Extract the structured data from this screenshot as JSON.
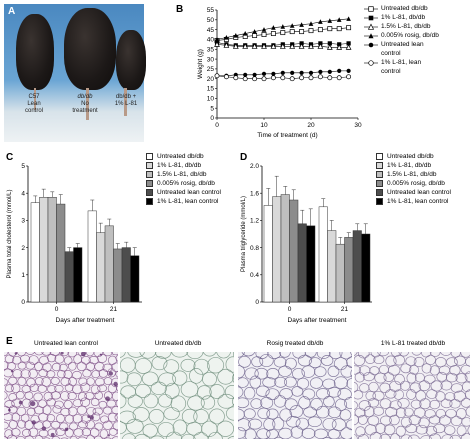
{
  "panels": {
    "A": {
      "letter": "A",
      "mouse_labels": [
        {
          "line1": "C57",
          "line2": "Lean",
          "line3": "control"
        },
        {
          "line1": "db/db",
          "line2": "No",
          "line3": "treatment"
        },
        {
          "line1": "db/db +",
          "line2": "1% L-81",
          "line3": ""
        }
      ]
    },
    "B": {
      "letter": "B"
    },
    "C": {
      "letter": "C"
    },
    "D": {
      "letter": "D"
    },
    "E": {
      "letter": "E",
      "labels": [
        "Untreated lean control",
        "Untreated db/db",
        "Rosig treated db/db",
        "1% L-81 treated db/db"
      ]
    }
  },
  "legend_B": [
    {
      "label": "Untreated db/db",
      "marker": "open-square"
    },
    {
      "label": "1% L-81, db/db",
      "marker": "filled-square"
    },
    {
      "label": "1.5% L-81, db/db",
      "marker": "open-triangle"
    },
    {
      "label": "0.005% rosig, db/db",
      "marker": "filled-triangle"
    },
    {
      "label": "Untreated lean",
      "marker": "filled-circle"
    },
    {
      "label": "control",
      "marker": "none"
    },
    {
      "label": "1% L-81, lean",
      "marker": "open-circle"
    },
    {
      "label": "control",
      "marker": "none"
    }
  ],
  "legend_bars": [
    {
      "label": "Untreated db/db",
      "color": "#ffffff"
    },
    {
      "label": "1% L-81, db/db",
      "color": "#d9d9d9"
    },
    {
      "label": "1.5% L-81, db/db",
      "color": "#bfbfbf"
    },
    {
      "label": "0.005% rosig, db/db",
      "color": "#8c8c8c"
    },
    {
      "label": "Untreated lean control",
      "color": "#4d4d4d"
    },
    {
      "label": "1% L-81, lean control",
      "color": "#000000"
    }
  ],
  "chart_data": [
    {
      "id": "B",
      "type": "line",
      "xlabel": "Time of treatment (d)",
      "ylabel": "Weight (g)",
      "xlim": [
        0,
        30
      ],
      "ylim": [
        0,
        55
      ],
      "xticks": [
        0,
        10,
        20,
        30
      ],
      "yticks": [
        0,
        5,
        10,
        15,
        20,
        25,
        30,
        35,
        40,
        45,
        50,
        55
      ],
      "x": [
        0,
        2,
        4,
        6,
        8,
        10,
        12,
        14,
        16,
        18,
        20,
        22,
        24,
        26,
        28
      ],
      "series": [
        {
          "name": "Untreated db/db",
          "marker": "open-square",
          "values": [
            39.5,
            40,
            41,
            41.5,
            42,
            42.5,
            43,
            43.5,
            44,
            44,
            44.5,
            45,
            45.5,
            45.5,
            46
          ]
        },
        {
          "name": "1% L-81, db/db",
          "marker": "filled-square",
          "values": [
            38.5,
            37.5,
            37,
            37,
            37,
            37,
            37,
            37.5,
            37.5,
            38,
            37.5,
            38,
            38,
            37.5,
            38
          ]
        },
        {
          "name": "1.5% L-81, db/db",
          "marker": "open-triangle",
          "values": [
            37.5,
            37,
            36.5,
            36.5,
            36.5,
            36.5,
            36.5,
            36.5,
            36.5,
            36.5,
            36.5,
            36.5,
            36,
            36,
            36
          ]
        },
        {
          "name": "0.005% rosig, db/db",
          "marker": "filled-triangle",
          "values": [
            40,
            41,
            42,
            43,
            44,
            45,
            46,
            46.5,
            47,
            47.5,
            48,
            49,
            49.5,
            50,
            50.5
          ]
        },
        {
          "name": "Untreated lean control",
          "marker": "filled-circle",
          "values": [
            21.5,
            21.5,
            22,
            22,
            22,
            22.5,
            22.5,
            23,
            23,
            23,
            23,
            23.5,
            23.5,
            24,
            24
          ]
        },
        {
          "name": "1% L-81, lean control",
          "marker": "open-circle",
          "values": [
            21.5,
            21,
            20.5,
            20,
            20,
            20,
            20.5,
            20.5,
            20,
            20.5,
            20.5,
            21,
            20.5,
            20.5,
            21
          ]
        }
      ]
    },
    {
      "id": "C",
      "type": "bar",
      "xlabel": "Days after treatment",
      "ylabel": "Plasma total cholesterol (mmol/L)",
      "ylim": [
        0,
        5
      ],
      "yticks": [
        "0",
        "1",
        "2",
        "3",
        "4",
        "5"
      ],
      "categories": [
        "0",
        "21"
      ],
      "series": [
        {
          "name": "Untreated db/db",
          "values": [
            3.65,
            3.35
          ],
          "err": [
            0.25,
            0.4
          ]
        },
        {
          "name": "1% L-81, db/db",
          "values": [
            3.85,
            2.55
          ],
          "err": [
            0.3,
            0.35
          ]
        },
        {
          "name": "1.5% L-81, db/db",
          "values": [
            3.85,
            2.8
          ],
          "err": [
            0.2,
            0.25
          ]
        },
        {
          "name": "0.005% rosig, db/db",
          "values": [
            3.6,
            1.95
          ],
          "err": [
            0.35,
            0.2
          ]
        },
        {
          "name": "Untreated lean control",
          "values": [
            1.85,
            2.0
          ],
          "err": [
            0.15,
            0.2
          ]
        },
        {
          "name": "1% L-81, lean control",
          "values": [
            2.0,
            1.7
          ],
          "err": [
            0.15,
            0.3
          ]
        }
      ]
    },
    {
      "id": "D",
      "type": "bar",
      "xlabel": "Days after treatment",
      "ylabel": "Plasma triglyceride (mmol/L)",
      "ylim": [
        0,
        2.0
      ],
      "yticks": [
        "0",
        "0.4",
        "0.8",
        "1.2",
        "1.6",
        "2.0"
      ],
      "categories": [
        "0",
        "21"
      ],
      "series": [
        {
          "name": "Untreated db/db",
          "values": [
            1.42,
            1.4
          ],
          "err": [
            0.25,
            0.12
          ]
        },
        {
          "name": "1% L-81, db/db",
          "values": [
            1.55,
            1.05
          ],
          "err": [
            0.3,
            0.15
          ]
        },
        {
          "name": "1.5% L-81, db/db",
          "values": [
            1.58,
            0.85
          ],
          "err": [
            0.12,
            0.1
          ]
        },
        {
          "name": "0.005% rosig, db/db",
          "values": [
            1.5,
            0.95
          ],
          "err": [
            0.15,
            0.07
          ]
        },
        {
          "name": "Untreated lean control",
          "values": [
            1.15,
            1.05
          ],
          "err": [
            0.2,
            0.1
          ]
        },
        {
          "name": "1% L-81, lean control",
          "values": [
            1.12,
            1.0
          ],
          "err": [
            0.25,
            0.15
          ]
        }
      ]
    }
  ]
}
